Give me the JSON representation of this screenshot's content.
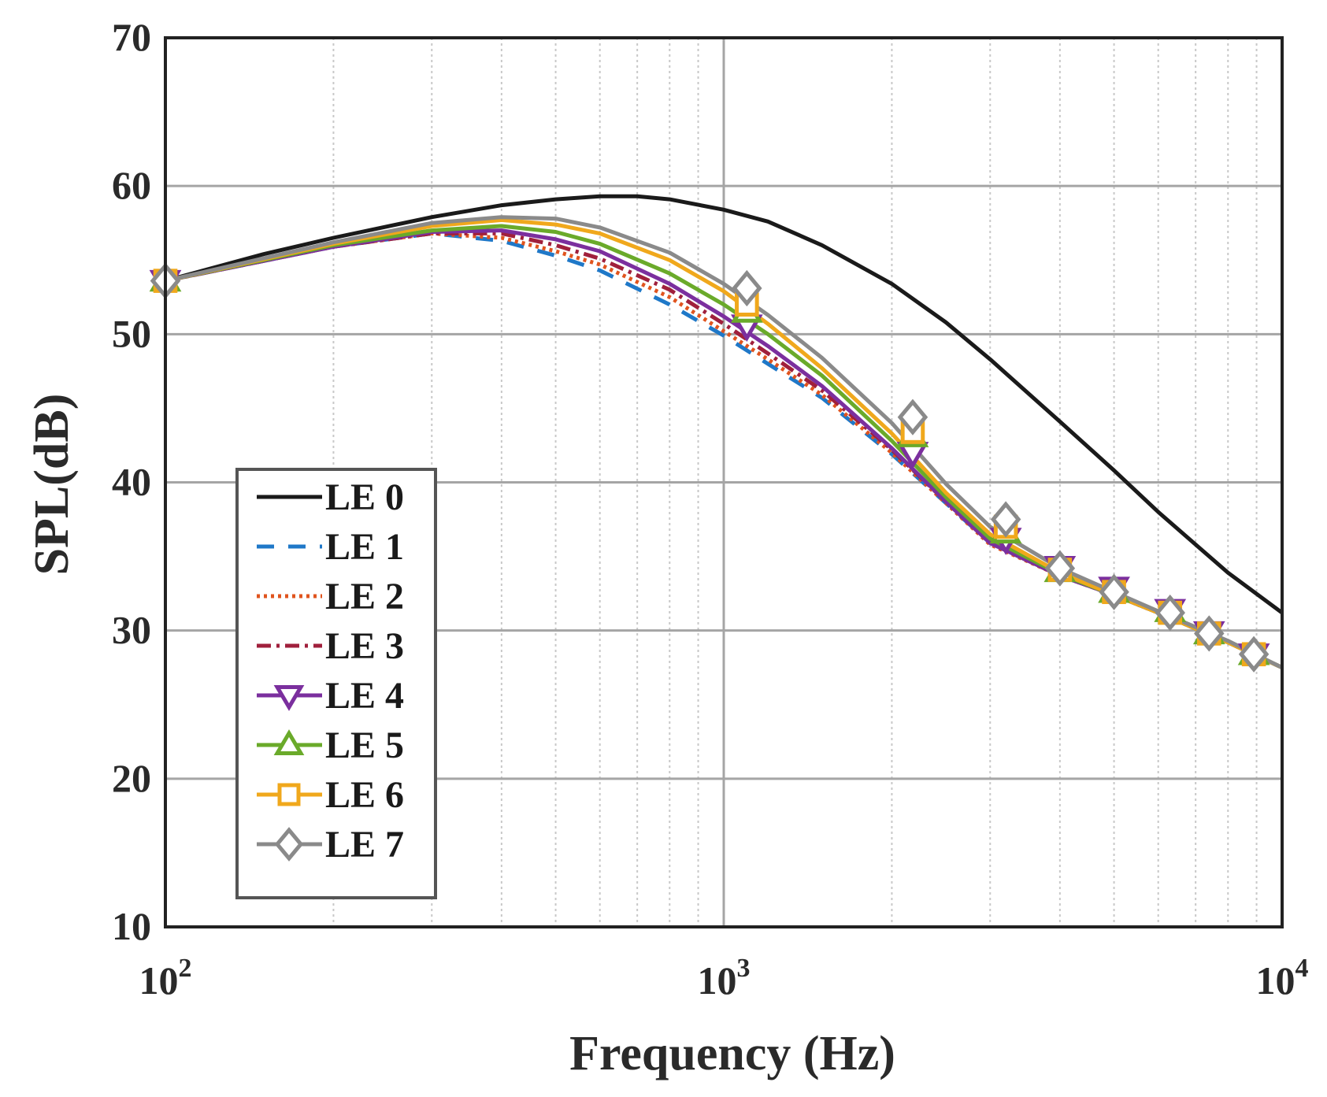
{
  "chart_data": {
    "type": "line",
    "xscale": "log",
    "xlabel": "Frequency (Hz)",
    "ylabel": "SPL(dB)",
    "xlim": [
      100,
      10000
    ],
    "ylim": [
      10,
      70
    ],
    "xticks": [
      {
        "value": 100,
        "base": "10",
        "exp": "2"
      },
      {
        "value": 1000,
        "base": "10",
        "exp": "3"
      },
      {
        "value": 10000,
        "base": "10",
        "exp": "4"
      }
    ],
    "yticks": [
      {
        "value": 10,
        "label": "10"
      },
      {
        "value": 20,
        "label": "20"
      },
      {
        "value": 30,
        "label": "30"
      },
      {
        "value": 40,
        "label": "40"
      },
      {
        "value": 50,
        "label": "50"
      },
      {
        "value": 60,
        "label": "60"
      },
      {
        "value": 70,
        "label": "70"
      }
    ],
    "grid": true,
    "legend_position": "left-middle",
    "series": [
      {
        "name": "LE 0",
        "color": "#1a1a1a",
        "dash": "",
        "marker": "none",
        "x": [
          100,
          150,
          200,
          300,
          400,
          500,
          600,
          700,
          800,
          1000,
          1200,
          1500,
          2000,
          2500,
          3000,
          4000,
          5000,
          6000,
          7000,
          8000,
          10000
        ],
        "y": [
          53.6,
          55.4,
          56.5,
          57.9,
          58.7,
          59.1,
          59.3,
          59.3,
          59.1,
          58.4,
          57.6,
          56.0,
          53.4,
          50.8,
          48.3,
          44.1,
          40.8,
          38.0,
          35.8,
          33.9,
          31.2
        ]
      },
      {
        "name": "LE 1",
        "color": "#1f78c8",
        "dash": "22 18",
        "marker": "none",
        "x": [
          100,
          200,
          300,
          400,
          500,
          600,
          800,
          1000,
          1200,
          1500,
          2000,
          2500,
          3000,
          4000,
          5000,
          6000,
          8000,
          10000
        ],
        "y": [
          53.6,
          55.9,
          56.8,
          56.3,
          55.3,
          54.3,
          52.0,
          49.9,
          48.0,
          45.7,
          41.9,
          38.6,
          35.9,
          33.7,
          32.4,
          31.2,
          29.2,
          27.5
        ]
      },
      {
        "name": "LE 2",
        "color": "#e0541e",
        "dash": "4 5",
        "marker": "none",
        "x": [
          100,
          200,
          300,
          400,
          500,
          600,
          800,
          1000,
          1200,
          1500,
          2000,
          2500,
          3000,
          4000,
          5000,
          6000,
          8000,
          10000
        ],
        "y": [
          53.6,
          55.9,
          56.8,
          56.5,
          55.6,
          54.7,
          52.5,
          50.2,
          48.3,
          45.9,
          42.0,
          38.6,
          35.8,
          33.7,
          32.4,
          31.2,
          29.2,
          27.5
        ]
      },
      {
        "name": "LE 3",
        "color": "#a0203c",
        "dash": "18 7 4 7",
        "marker": "none",
        "x": [
          100,
          200,
          300,
          400,
          500,
          600,
          800,
          1000,
          1200,
          1500,
          2000,
          2500,
          3000,
          4000,
          5000,
          6000,
          8000,
          10000
        ],
        "y": [
          53.6,
          55.9,
          56.8,
          56.8,
          56.0,
          55.1,
          53.0,
          50.7,
          48.7,
          46.2,
          42.2,
          38.7,
          35.9,
          33.7,
          32.4,
          31.2,
          29.2,
          27.5
        ]
      },
      {
        "name": "LE 4",
        "color": "#7b2f9e",
        "dash": "",
        "marker": "triangle-down",
        "x": [
          100,
          200,
          300,
          400,
          500,
          600,
          800,
          1000,
          1200,
          1500,
          2000,
          2500,
          3000,
          4000,
          5000,
          6000,
          8000,
          10000
        ],
        "y": [
          53.6,
          55.9,
          56.9,
          57.0,
          56.4,
          55.6,
          53.4,
          51.2,
          49.2,
          46.5,
          42.3,
          38.7,
          35.9,
          33.7,
          32.4,
          31.2,
          29.2,
          27.5
        ]
      },
      {
        "name": "LE 5",
        "color": "#6aaa2a",
        "dash": "",
        "marker": "triangle-up",
        "x": [
          100,
          200,
          300,
          400,
          500,
          600,
          800,
          1000,
          1200,
          1500,
          2000,
          2500,
          3000,
          4000,
          5000,
          6000,
          8000,
          10000
        ],
        "y": [
          53.6,
          56.0,
          57.0,
          57.3,
          56.9,
          56.1,
          54.1,
          52.0,
          50.0,
          47.2,
          42.8,
          39.0,
          36.2,
          33.8,
          32.4,
          31.2,
          29.2,
          27.5
        ]
      },
      {
        "name": "LE 6",
        "color": "#f0a81c",
        "dash": "",
        "marker": "square",
        "x": [
          100,
          200,
          300,
          400,
          500,
          600,
          800,
          1000,
          1200,
          1500,
          2000,
          2500,
          3000,
          4000,
          5000,
          6000,
          8000,
          10000
        ],
        "y": [
          53.6,
          56.1,
          57.3,
          57.7,
          57.4,
          56.8,
          55.0,
          52.9,
          50.7,
          47.7,
          43.3,
          39.3,
          36.5,
          33.9,
          32.4,
          31.2,
          29.2,
          27.5
        ]
      },
      {
        "name": "LE 7",
        "color": "#8a8a8a",
        "dash": "",
        "marker": "diamond",
        "x": [
          100,
          200,
          300,
          400,
          500,
          600,
          800,
          1000,
          1200,
          1500,
          2000,
          2500,
          3000,
          4000,
          5000,
          6000,
          8000,
          10000
        ],
        "y": [
          53.6,
          56.2,
          57.5,
          57.9,
          57.8,
          57.2,
          55.5,
          53.4,
          51.3,
          48.4,
          44.0,
          39.9,
          37.0,
          34.2,
          32.6,
          31.3,
          29.3,
          27.5
        ]
      }
    ],
    "markers": [
      {
        "series": "LE 4",
        "x": [
          100,
          1100,
          2180,
          3200,
          4000,
          5000,
          6300,
          7400,
          8900
        ],
        "y": [
          53.6,
          50.6,
          42.0,
          36.2,
          34.3,
          32.9,
          31.4,
          29.9,
          28.4
        ]
      },
      {
        "series": "LE 5",
        "x": [
          100,
          1100,
          2180,
          3200,
          4000,
          5000,
          6300,
          7400,
          8900
        ],
        "y": [
          53.6,
          51.5,
          43.1,
          36.6,
          34.0,
          32.6,
          31.3,
          29.8,
          28.4
        ]
      },
      {
        "series": "LE 6",
        "x": [
          100,
          1100,
          2180,
          3200,
          4000,
          5000,
          6300,
          7400,
          8900
        ],
        "y": [
          53.6,
          52.0,
          43.4,
          37.0,
          34.1,
          32.6,
          31.2,
          29.8,
          28.4
        ]
      },
      {
        "series": "LE 7",
        "x": [
          100,
          1100,
          2180,
          3200,
          4000,
          5000,
          6300,
          7400,
          8900
        ],
        "y": [
          53.6,
          53.1,
          44.4,
          37.5,
          34.2,
          32.6,
          31.2,
          29.8,
          28.4
        ]
      }
    ]
  }
}
